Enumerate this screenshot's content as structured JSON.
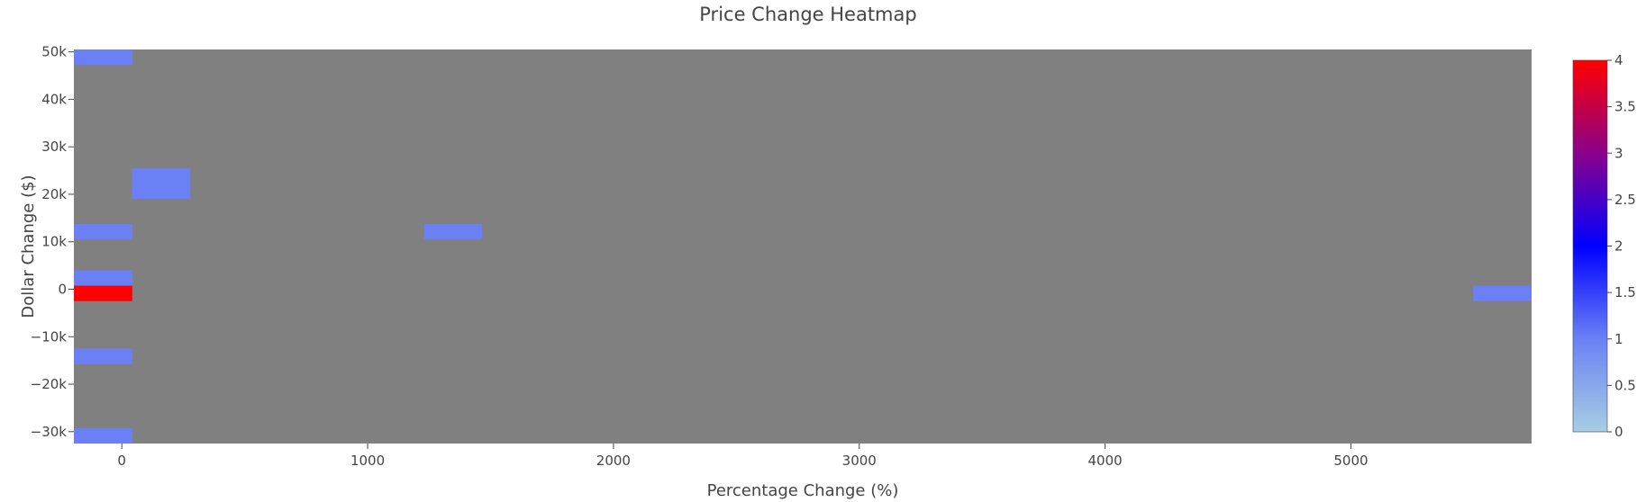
{
  "chart_data": {
    "type": "heatmap",
    "title": "Price Change Heatmap",
    "xlabel": "Percentage Change (%)",
    "ylabel": "Dollar Change ($)",
    "xlim": [
      -195,
      5735
    ],
    "ylim": [
      -32500,
      50500
    ],
    "x_bin_width": 237,
    "y_bin_width": 3250,
    "x_ticks": [
      0,
      1000,
      2000,
      3000,
      4000,
      5000
    ],
    "x_tick_labels": [
      "0",
      "1000",
      "2000",
      "3000",
      "4000",
      "5000"
    ],
    "y_ticks": [
      50000,
      40000,
      30000,
      20000,
      10000,
      0,
      -10000,
      -20000,
      -30000
    ],
    "y_tick_labels": [
      "50k",
      "40k",
      "30k",
      "20k",
      "10k",
      "0",
      "−10k",
      "−20k",
      "−30k"
    ],
    "background_color": "#808080",
    "cells": [
      {
        "x": -76,
        "y": 48875,
        "count": 1
      },
      {
        "x": 160,
        "y": 23875,
        "count": 1
      },
      {
        "x": 160,
        "y": 20625,
        "count": 1
      },
      {
        "x": -76,
        "y": 12125,
        "count": 1
      },
      {
        "x": 1348,
        "y": 12125,
        "count": 1
      },
      {
        "x": -76,
        "y": 2375,
        "count": 1
      },
      {
        "x": -76,
        "y": -875,
        "count": 4
      },
      {
        "x": 5616,
        "y": -875,
        "count": 1
      },
      {
        "x": -76,
        "y": -14125,
        "count": 1
      },
      {
        "x": -76,
        "y": -30875,
        "count": 1
      }
    ],
    "colorscale": {
      "min": 0,
      "max": 4,
      "stops": [
        {
          "pos": 0,
          "color": "#a6cee3"
        },
        {
          "pos": 0.25,
          "color": "#6b80f5"
        },
        {
          "pos": 0.5,
          "color": "#0000ff"
        },
        {
          "pos": 0.75,
          "color": "#8a008a"
        },
        {
          "pos": 1,
          "color": "#ff0000"
        }
      ],
      "ticks": [
        0,
        0.5,
        1,
        1.5,
        2,
        2.5,
        3,
        3.5,
        4
      ],
      "tick_labels": [
        "0",
        "0.5",
        "1",
        "1.5",
        "2",
        "2.5",
        "3",
        "3.5",
        "4"
      ]
    }
  }
}
